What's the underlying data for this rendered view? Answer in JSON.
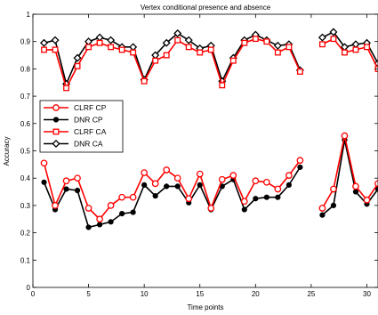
{
  "chart_data": {
    "type": "line",
    "title": "Vertex conditional presence and absence",
    "xlabel": "Time points",
    "ylabel": "Accuracy",
    "xlim": [
      0,
      31
    ],
    "ylim": [
      0,
      1
    ],
    "x_ticks": [
      0,
      5,
      10,
      15,
      20,
      25,
      30
    ],
    "y_ticks": [
      0,
      0.1,
      0.2,
      0.3,
      0.4,
      0.5,
      0.6,
      0.7,
      0.8,
      0.9,
      1
    ],
    "x_tick_labels": [
      "0",
      "5",
      "10",
      "15",
      "20",
      "25",
      "30"
    ],
    "y_tick_labels": [
      "0",
      "0.1",
      "0.2",
      "0.3",
      "0.4",
      "0.5",
      "0.6",
      "0.7",
      "0.8",
      "0.9",
      "1"
    ],
    "grid": false,
    "legend_position": "middle-left",
    "x": [
      1,
      2,
      3,
      4,
      5,
      6,
      7,
      8,
      9,
      10,
      11,
      12,
      13,
      14,
      15,
      16,
      17,
      18,
      19,
      20,
      21,
      22,
      23,
      24,
      25,
      26,
      27,
      28,
      29,
      30,
      31
    ],
    "series": [
      {
        "name": "CLRF CP",
        "color": "#ff0000",
        "marker": "circle-open",
        "values": [
          0.455,
          0.3,
          0.39,
          0.4,
          0.29,
          0.25,
          0.3,
          0.33,
          0.33,
          0.42,
          0.38,
          0.43,
          0.4,
          0.325,
          0.415,
          0.29,
          0.395,
          0.41,
          0.315,
          0.39,
          0.385,
          0.36,
          0.41,
          0.465,
          null,
          0.29,
          0.36,
          0.555,
          0.37,
          0.32,
          0.38
        ]
      },
      {
        "name": "DNR CP",
        "color": "#000000",
        "marker": "circle-filled",
        "values": [
          0.385,
          0.285,
          0.36,
          0.355,
          0.22,
          0.23,
          0.24,
          0.27,
          0.275,
          0.375,
          0.335,
          0.37,
          0.37,
          0.31,
          0.375,
          0.285,
          0.37,
          0.395,
          0.285,
          0.325,
          0.33,
          0.33,
          0.375,
          0.44,
          null,
          0.265,
          0.3,
          0.54,
          0.35,
          0.305,
          0.36
        ]
      },
      {
        "name": "CLRF CA",
        "color": "#ff0000",
        "marker": "square-open",
        "values": [
          0.87,
          0.87,
          0.73,
          0.81,
          0.88,
          0.895,
          0.88,
          0.87,
          0.86,
          0.755,
          0.83,
          0.85,
          0.905,
          0.88,
          0.86,
          0.87,
          0.74,
          0.83,
          0.895,
          0.91,
          0.9,
          0.86,
          0.88,
          0.79,
          null,
          0.89,
          0.91,
          0.86,
          0.87,
          0.88,
          0.8
        ]
      },
      {
        "name": "DNR CA",
        "color": "#000000",
        "marker": "diamond-open",
        "values": [
          0.895,
          0.905,
          0.745,
          0.84,
          0.9,
          0.915,
          0.905,
          0.88,
          0.88,
          0.76,
          0.85,
          0.895,
          0.93,
          0.905,
          0.875,
          0.885,
          0.755,
          0.84,
          0.905,
          0.925,
          0.905,
          0.885,
          0.89,
          0.795,
          null,
          0.915,
          0.935,
          0.88,
          0.89,
          0.895,
          0.82
        ]
      }
    ]
  }
}
